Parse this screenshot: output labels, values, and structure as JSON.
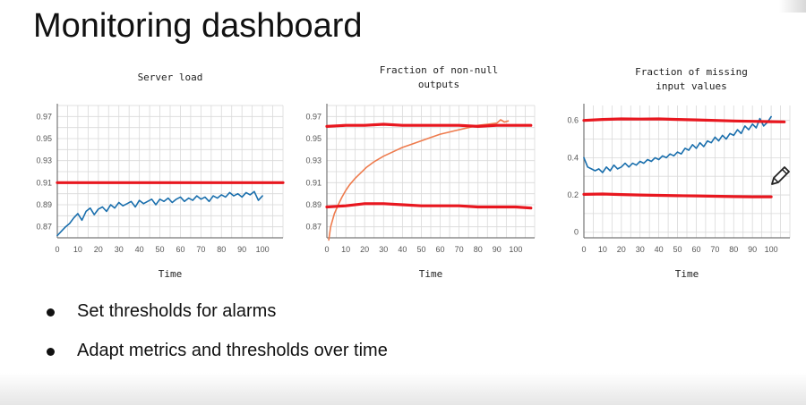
{
  "page": {
    "title": "Monitoring dashboard",
    "bullets": [
      "Set thresholds for alarms",
      "Adapt metrics and thresholds over time"
    ]
  },
  "colors": {
    "threshold": "#e8171f",
    "series_blue": "#1a6fad",
    "series_orange": "#ee7b4d",
    "grid": "#d9d9d9",
    "axis": "#777777"
  },
  "icons": [
    "pencil-icon"
  ],
  "chart_data": [
    {
      "type": "line",
      "title": [
        "Server load"
      ],
      "xlabel": "Time",
      "ylabel": "",
      "xlim": [
        0,
        110
      ],
      "ylim": [
        0.86,
        0.98
      ],
      "xticks": [
        0,
        10,
        20,
        30,
        40,
        50,
        60,
        70,
        80,
        90,
        100
      ],
      "yticks": [
        0.87,
        0.89,
        0.91,
        0.93,
        0.95,
        0.97
      ],
      "ytick_labels": [
        "0.87",
        "0.89",
        "0.91",
        "0.93",
        "0.95",
        "0.97"
      ],
      "grid": true,
      "series": [
        {
          "role": "metric",
          "color": "#1a6fad",
          "x": [
            0,
            2,
            4,
            6,
            8,
            10,
            12,
            14,
            16,
            18,
            20,
            22,
            24,
            26,
            28,
            30,
            32,
            34,
            36,
            38,
            40,
            42,
            44,
            46,
            48,
            50,
            52,
            54,
            56,
            58,
            60,
            62,
            64,
            66,
            68,
            70,
            72,
            74,
            76,
            78,
            80,
            82,
            84,
            86,
            88,
            90,
            92,
            94,
            96,
            98,
            100
          ],
          "y": [
            0.862,
            0.866,
            0.87,
            0.873,
            0.878,
            0.882,
            0.876,
            0.884,
            0.887,
            0.881,
            0.886,
            0.888,
            0.884,
            0.89,
            0.887,
            0.892,
            0.889,
            0.891,
            0.893,
            0.888,
            0.894,
            0.891,
            0.893,
            0.895,
            0.89,
            0.895,
            0.893,
            0.896,
            0.892,
            0.895,
            0.897,
            0.893,
            0.896,
            0.894,
            0.898,
            0.895,
            0.897,
            0.893,
            0.898,
            0.896,
            0.899,
            0.897,
            0.901,
            0.898,
            0.9,
            0.897,
            0.901,
            0.899,
            0.902,
            0.894,
            0.898
          ]
        },
        {
          "role": "threshold",
          "color": "#e8171f",
          "x": [
            0,
            110
          ],
          "y": [
            0.91,
            0.91
          ]
        }
      ]
    },
    {
      "type": "line",
      "title": [
        "Fraction of non-null",
        "outputs"
      ],
      "xlabel": "Time",
      "ylabel": "",
      "xlim": [
        0,
        110
      ],
      "ylim": [
        0.86,
        0.98
      ],
      "xticks": [
        0,
        10,
        20,
        30,
        40,
        50,
        60,
        70,
        80,
        90,
        100
      ],
      "yticks": [
        0.87,
        0.89,
        0.91,
        0.93,
        0.95,
        0.97
      ],
      "ytick_labels": [
        "0.87",
        "0.89",
        "0.91",
        "0.93",
        "0.95",
        "0.97"
      ],
      "grid": true,
      "series": [
        {
          "role": "metric",
          "color": "#ee7b4d",
          "x": [
            1,
            2,
            4,
            6,
            8,
            10,
            12,
            15,
            18,
            21,
            25,
            30,
            35,
            40,
            45,
            50,
            55,
            60,
            65,
            70,
            75,
            80,
            85,
            90,
            92,
            94,
            96
          ],
          "y": [
            0.858,
            0.87,
            0.882,
            0.89,
            0.897,
            0.903,
            0.908,
            0.914,
            0.919,
            0.924,
            0.929,
            0.934,
            0.938,
            0.942,
            0.945,
            0.948,
            0.951,
            0.954,
            0.956,
            0.958,
            0.96,
            0.962,
            0.963,
            0.964,
            0.967,
            0.965,
            0.966
          ]
        },
        {
          "role": "threshold",
          "color": "#e8171f",
          "x": [
            0,
            10,
            20,
            30,
            40,
            50,
            60,
            70,
            80,
            90,
            100,
            108
          ],
          "y": [
            0.961,
            0.962,
            0.962,
            0.963,
            0.962,
            0.962,
            0.962,
            0.962,
            0.961,
            0.962,
            0.962,
            0.962
          ]
        },
        {
          "role": "threshold",
          "color": "#e8171f",
          "x": [
            0,
            10,
            20,
            30,
            40,
            50,
            60,
            70,
            80,
            90,
            100,
            108
          ],
          "y": [
            0.888,
            0.889,
            0.891,
            0.891,
            0.89,
            0.889,
            0.889,
            0.889,
            0.888,
            0.888,
            0.888,
            0.887
          ]
        }
      ]
    },
    {
      "type": "line",
      "title": [
        "Fraction of missing",
        "input values"
      ],
      "xlabel": "Time",
      "ylabel": "",
      "xlim": [
        0,
        110
      ],
      "ylim": [
        -0.03,
        0.68
      ],
      "xticks": [
        0,
        10,
        20,
        30,
        40,
        50,
        60,
        70,
        80,
        90,
        100
      ],
      "yticks": [
        0,
        0.2,
        0.4,
        0.6
      ],
      "ytick_labels": [
        "0",
        "0.2",
        "0.4",
        "0.6"
      ],
      "grid": true,
      "series": [
        {
          "role": "metric",
          "color": "#1a6fad",
          "x": [
            0,
            2,
            4,
            6,
            8,
            10,
            12,
            14,
            16,
            18,
            20,
            22,
            24,
            26,
            28,
            30,
            32,
            34,
            36,
            38,
            40,
            42,
            44,
            46,
            48,
            50,
            52,
            54,
            56,
            58,
            60,
            62,
            64,
            66,
            68,
            70,
            72,
            74,
            76,
            78,
            80,
            82,
            84,
            86,
            88,
            90,
            92,
            94,
            96,
            98,
            100
          ],
          "y": [
            0.4,
            0.35,
            0.34,
            0.33,
            0.34,
            0.32,
            0.35,
            0.33,
            0.36,
            0.34,
            0.35,
            0.37,
            0.35,
            0.37,
            0.36,
            0.38,
            0.37,
            0.39,
            0.38,
            0.4,
            0.39,
            0.41,
            0.4,
            0.42,
            0.41,
            0.43,
            0.42,
            0.45,
            0.44,
            0.47,
            0.45,
            0.48,
            0.46,
            0.49,
            0.48,
            0.51,
            0.49,
            0.52,
            0.5,
            0.53,
            0.52,
            0.55,
            0.53,
            0.57,
            0.55,
            0.58,
            0.56,
            0.61,
            0.57,
            0.59,
            0.62
          ]
        },
        {
          "role": "threshold",
          "color": "#e8171f",
          "x": [
            0,
            10,
            20,
            30,
            40,
            50,
            60,
            70,
            80,
            90,
            100,
            107
          ],
          "y": [
            0.6,
            0.605,
            0.608,
            0.607,
            0.608,
            0.605,
            0.603,
            0.6,
            0.597,
            0.595,
            0.593,
            0.592
          ]
        },
        {
          "role": "threshold",
          "color": "#e8171f",
          "x": [
            0,
            10,
            20,
            30,
            40,
            50,
            60,
            70,
            80,
            90,
            100
          ],
          "y": [
            0.203,
            0.205,
            0.202,
            0.2,
            0.198,
            0.196,
            0.195,
            0.193,
            0.191,
            0.19,
            0.19
          ]
        }
      ]
    }
  ]
}
